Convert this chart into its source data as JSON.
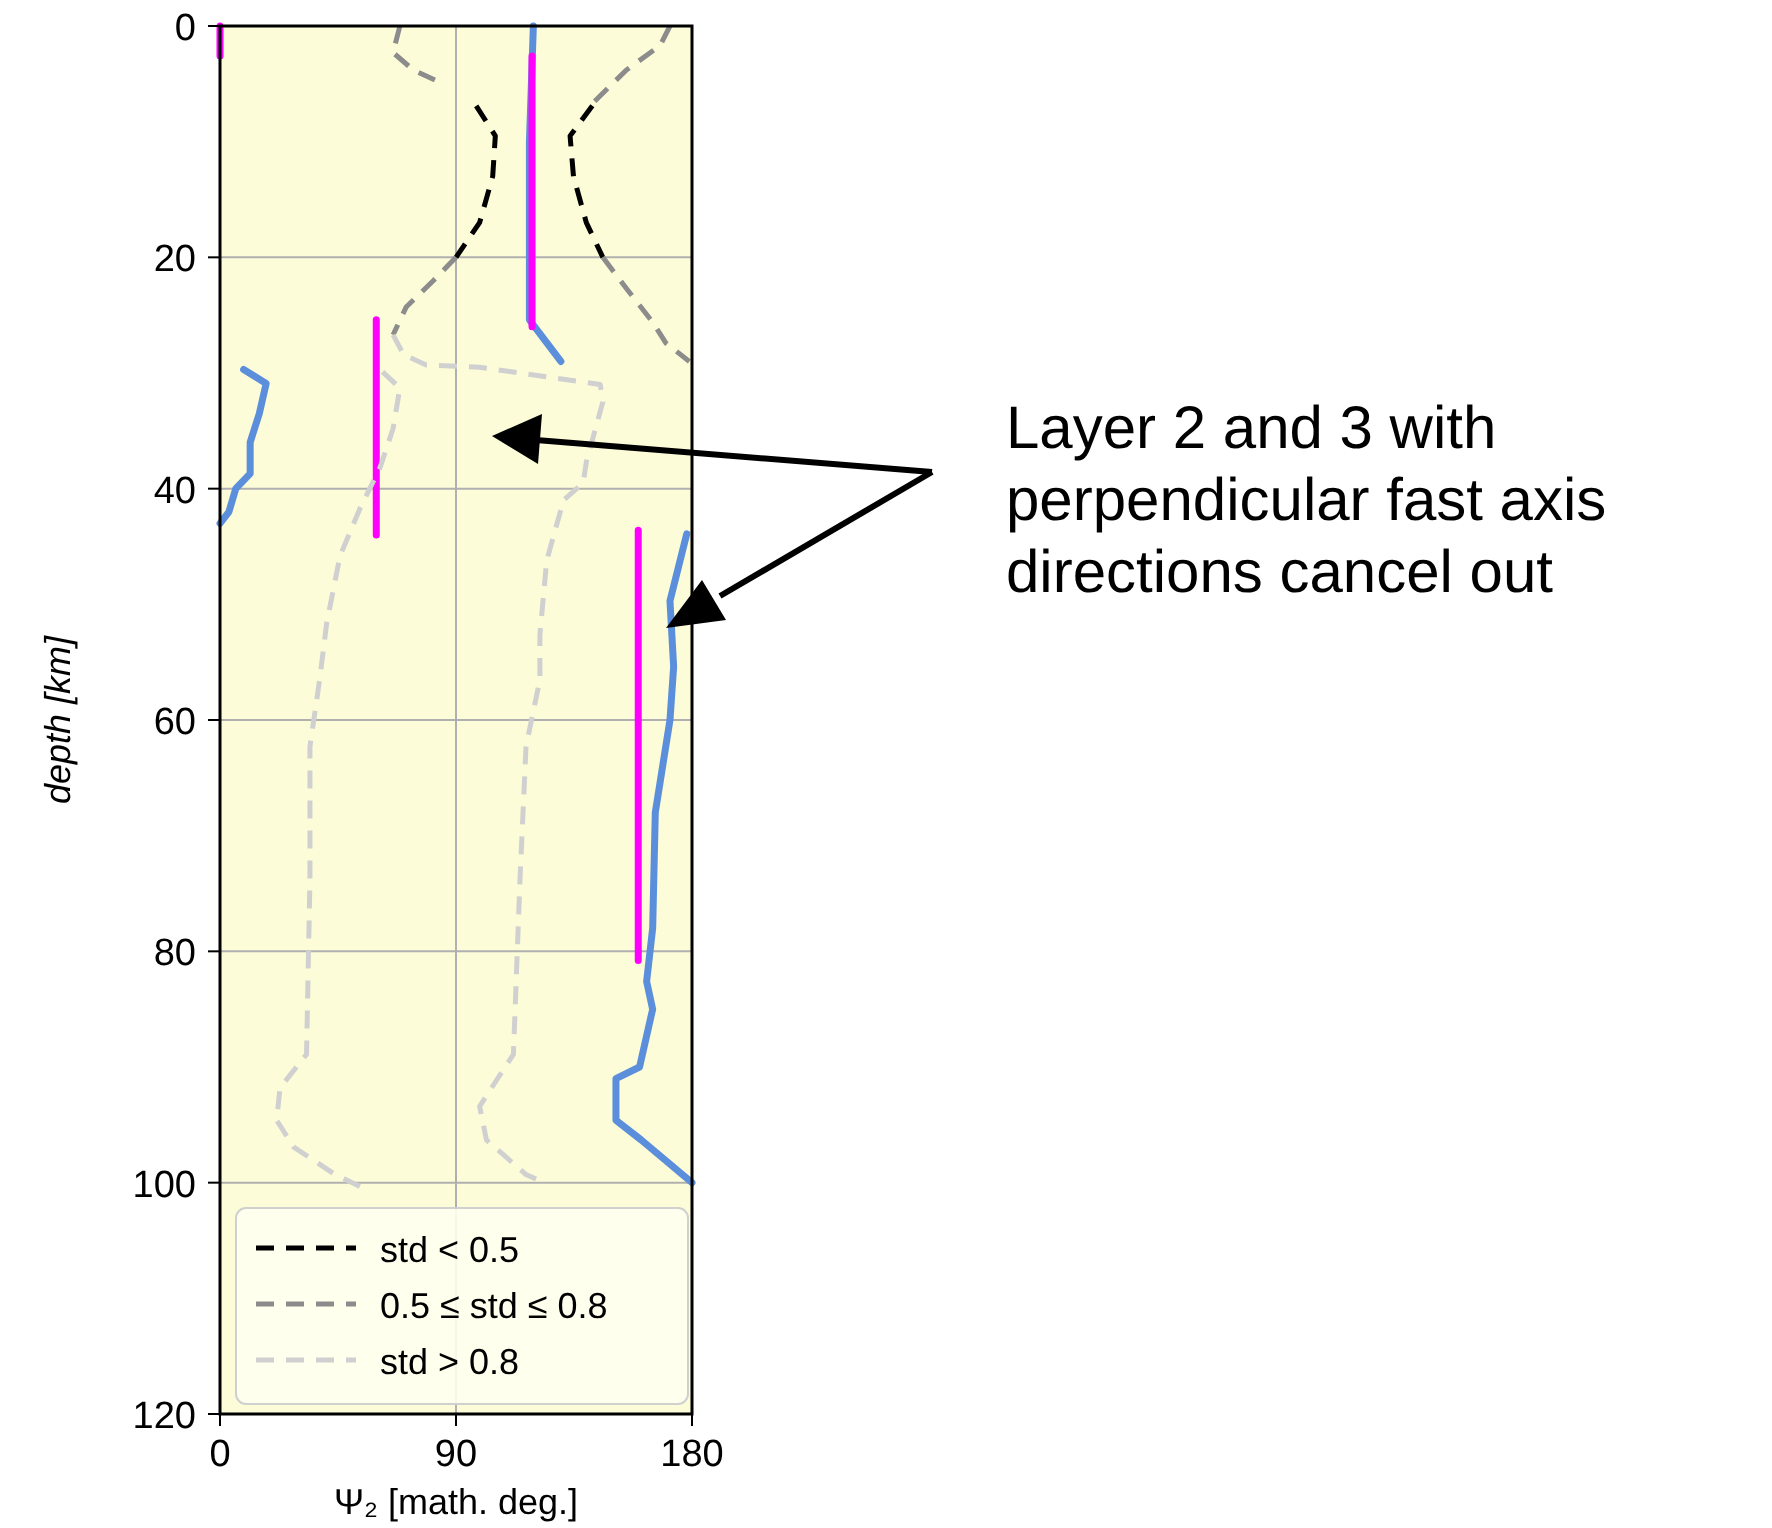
{
  "chart_data": {
    "type": "line",
    "xlabel": "Ψ₂ [math. deg.]",
    "ylabel": "depth [km]",
    "xlim": [
      0,
      180
    ],
    "xticks": [
      0,
      90,
      180
    ],
    "ylim": [
      120,
      0
    ],
    "yticks": [
      0,
      20,
      40,
      60,
      80,
      100,
      120
    ],
    "grid": true,
    "legend": "bottom left",
    "annotations": [
      "Layer 2 and 3 with perpendicular fast axis directions cancel out"
    ],
    "series": [
      {
        "color": "#5b8fdc",
        "line_style": "solid",
        "x": [
          119.5,
          118,
          118,
          130,
          null,
          9,
          17.6,
          15,
          11.5,
          11.5,
          6,
          3.4,
          0,
          null,
          178,
          171.6,
          173,
          171.6,
          166,
          165,
          162.7,
          165,
          160,
          151,
          151,
          160.6,
          180
        ],
        "values": [
          0,
          10,
          25.4,
          29,
          null,
          29.7,
          30.9,
          33.5,
          36,
          38.7,
          40,
          42,
          43,
          null,
          43.9,
          49.7,
          55.4,
          60,
          68,
          78,
          82.6,
          85,
          90,
          91,
          94.6,
          96.3,
          100
        ]
      },
      {
        "color": "#ff00ff",
        "line_style": "solid",
        "x": [
          119,
          119,
          null,
          59.6,
          59.6,
          null,
          159.5,
          159.5,
          null,
          0,
          0
        ],
        "values": [
          2.6,
          26,
          null,
          25.4,
          44,
          null,
          43.6,
          80.8,
          null,
          0,
          2.6
        ]
      },
      {
        "name": "std < 0.5",
        "color": "#000000",
        "line_style": "dashed",
        "x": [
          97.7,
          105,
          104,
          99,
          90,
          null,
          142,
          133.5,
          134.8,
          139.7,
          146
        ],
        "values": [
          6.9,
          9.5,
          13,
          17,
          20,
          null,
          6.9,
          9.5,
          13,
          17,
          20
        ]
      },
      {
        "name": "0.5 ≤ std ≤ 0.8",
        "color": "#8c8c8c",
        "line_style": "dashed",
        "x": [
          68.6,
          66,
          73.7,
          85,
          null,
          90,
          81.4,
          71,
          66,
          null,
          171.6,
          167.8,
          155,
          142,
          null,
          146,
          155,
          165,
          170,
          179
        ],
        "values": [
          0,
          2.3,
          3.8,
          5,
          null,
          20,
          22,
          24.3,
          26.7,
          null,
          0,
          1.7,
          3.8,
          6.7,
          null,
          20,
          22.7,
          25.6,
          27.4,
          29
        ]
      },
      {
        "name": "std > 0.8",
        "color": "#d0d0d0",
        "line_style": "dashed",
        "x": [
          66,
          70,
          78.6,
          99,
          145,
          146,
          139.7,
          138.5,
          131,
          124.6,
          122,
          122,
          116.7,
          114.4,
          111.9,
          99,
          101.6,
          116.7,
          124.6,
          null,
          62,
          68.6,
          66,
          61,
          53.4,
          45.8,
          40.7,
          38,
          34.3,
          34.3,
          33,
          22.9,
          21.6,
          28,
          43.2,
          55.8
        ],
        "values": [
          26.7,
          28.4,
          29.3,
          29.5,
          31,
          32.5,
          37.7,
          39.5,
          41,
          46.2,
          52.6,
          56.5,
          62.3,
          73.8,
          88.9,
          93.4,
          96.3,
          99.3,
          100.1,
          null,
          29.9,
          31.3,
          34.8,
          38.2,
          41.7,
          45.8,
          51.6,
          56.5,
          62.3,
          73.8,
          88.9,
          91.8,
          94.6,
          96.9,
          99.2,
          100.6
        ]
      }
    ]
  }
}
